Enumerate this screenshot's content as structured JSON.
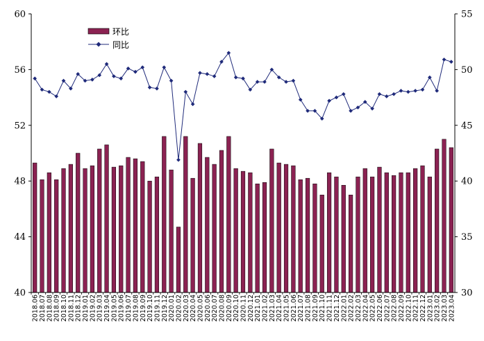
{
  "chart_data": {
    "type": "bar",
    "categories": [
      "2018.06",
      "2018.07",
      "2018.08",
      "2018.09",
      "2018.10",
      "2018.11",
      "2018.12",
      "2019.01",
      "2019.02",
      "2019.03",
      "2019.04",
      "2019.05",
      "2019.06",
      "2019.07",
      "2019.08",
      "2019.09",
      "2019.10",
      "2019.11",
      "2019.12",
      "2020.01",
      "2020.02",
      "2020.03",
      "2020.04",
      "2020.05",
      "2020.06",
      "2020.07",
      "2020.08",
      "2020.09",
      "2020.10",
      "2020.11",
      "2020.12",
      "2021.01",
      "2021.02",
      "2021.03",
      "2021.04",
      "2021.05",
      "2021.06",
      "2021.07",
      "2021.08",
      "2021.09",
      "2021.10",
      "2021.11",
      "2021.12",
      "2022.01",
      "2022.02",
      "2022.03",
      "2022.04",
      "2022.05",
      "2022.06",
      "2022.07",
      "2022.08",
      "2022.09",
      "2022.10",
      "2022.11",
      "2022.12",
      "2023.01",
      "2023.02",
      "2023.03",
      "2023.04"
    ],
    "series": [
      {
        "name": "环比",
        "type": "bar",
        "axis": "left",
        "color": "#8b2252",
        "values": [
          49.3,
          48.1,
          48.6,
          48.1,
          48.9,
          49.2,
          50.0,
          48.9,
          49.1,
          50.3,
          50.6,
          49.0,
          49.1,
          49.7,
          49.6,
          49.4,
          48.0,
          48.3,
          51.2,
          48.8,
          44.7,
          51.2,
          48.2,
          50.7,
          49.7,
          49.2,
          50.2,
          51.2,
          48.9,
          48.7,
          48.6,
          47.8,
          47.9,
          50.3,
          49.3,
          49.2,
          49.1,
          48.1,
          48.2,
          47.8,
          47.0,
          48.6,
          48.3,
          47.7,
          47.0,
          48.3,
          48.9,
          48.3,
          49.0,
          48.6,
          48.4,
          48.6,
          48.6,
          48.9,
          49.1,
          48.3,
          50.3,
          51.0,
          50.4
        ]
      },
      {
        "name": "同比",
        "type": "line",
        "axis": "right",
        "color": "#1f2a7a",
        "values": [
          49.2,
          48.2,
          48.0,
          47.6,
          49.0,
          48.3,
          49.6,
          49.0,
          49.1,
          49.5,
          50.5,
          49.4,
          49.2,
          50.1,
          49.8,
          50.2,
          48.4,
          48.3,
          50.2,
          49.0,
          41.9,
          48.0,
          46.9,
          49.7,
          49.6,
          49.4,
          50.7,
          51.5,
          49.3,
          49.2,
          48.2,
          48.9,
          48.9,
          50.0,
          49.3,
          48.9,
          49.0,
          47.3,
          46.3,
          46.3,
          45.6,
          47.2,
          47.5,
          47.8,
          46.3,
          46.6,
          47.1,
          46.5,
          47.8,
          47.6,
          47.8,
          48.1,
          48.0,
          48.1,
          48.2,
          49.3,
          48.1,
          50.9,
          50.7
        ]
      }
    ],
    "y_left": {
      "min": 40,
      "max": 60,
      "ticks": [
        "40",
        "44",
        "48",
        "52",
        "56",
        "60"
      ]
    },
    "y_right": {
      "min": 30,
      "max": 55,
      "ticks": [
        "30",
        "35",
        "40",
        "45",
        "50",
        "55"
      ]
    },
    "legend": {
      "placement": "top-left",
      "items": [
        "环比",
        "同比"
      ]
    },
    "grid": false,
    "title": "",
    "xlabel": "",
    "ylabel": ""
  }
}
